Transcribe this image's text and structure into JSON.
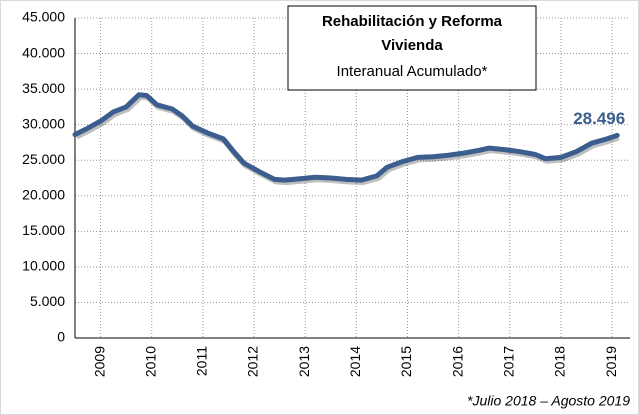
{
  "chart_data": {
    "type": "line",
    "title": [
      "Rehabilitación y Reforma",
      "Vivienda"
    ],
    "subtitle": "Interanual Acumulado*",
    "footnote": "*Julio 2018 – Agosto 2019",
    "x": [
      2009.0,
      2009.25,
      2009.5,
      2009.75,
      2010.0,
      2010.25,
      2010.4,
      2010.6,
      2010.9,
      2011.1,
      2011.3,
      2011.6,
      2011.9,
      2012.1,
      2012.3,
      2012.6,
      2012.9,
      2013.1,
      2013.4,
      2013.7,
      2014.0,
      2014.3,
      2014.6,
      2014.9,
      2015.1,
      2015.4,
      2015.7,
      2016.0,
      2016.3,
      2016.6,
      2016.9,
      2017.1,
      2017.4,
      2017.7,
      2018.0,
      2018.2,
      2018.5,
      2018.8,
      2019.1,
      2019.4,
      2019.6
    ],
    "series": [
      {
        "name": "Rehabilitación y Reforma Vivienda",
        "color": "#3b5e8e",
        "values": [
          28600,
          29500,
          30500,
          31800,
          32500,
          34200,
          34100,
          32800,
          32200,
          31200,
          29800,
          28800,
          28000,
          26200,
          24600,
          23400,
          22300,
          22200,
          22400,
          22600,
          22500,
          22300,
          22200,
          22800,
          24000,
          24800,
          25400,
          25500,
          25700,
          26000,
          26400,
          26700,
          26500,
          26200,
          25800,
          25200,
          25400,
          26200,
          27400,
          28000,
          28496
        ],
        "value_labels": [
          null,
          null,
          null,
          null,
          null,
          null,
          null,
          null,
          null,
          null,
          null,
          null,
          null,
          null,
          null,
          null,
          null,
          null,
          null,
          null,
          null,
          null,
          null,
          null,
          null,
          null,
          null,
          null,
          null,
          null,
          null,
          null,
          null,
          null,
          null,
          null,
          null,
          null,
          null,
          null,
          "28.496"
        ]
      }
    ],
    "xlim": [
      2009.0,
      2019.85
    ],
    "xticks": [
      {
        "value": 2009.5,
        "label": "2009"
      },
      {
        "value": 2010.5,
        "label": "2010"
      },
      {
        "value": 2011.5,
        "label": "2011"
      },
      {
        "value": 2012.5,
        "label": "2012"
      },
      {
        "value": 2013.5,
        "label": "2013"
      },
      {
        "value": 2014.5,
        "label": "2014"
      },
      {
        "value": 2015.5,
        "label": "2015"
      },
      {
        "value": 2016.5,
        "label": "2016"
      },
      {
        "value": 2017.5,
        "label": "2017"
      },
      {
        "value": 2018.5,
        "label": "2018"
      },
      {
        "value": 2019.5,
        "label": "2019"
      }
    ],
    "ylim": [
      0,
      45000
    ],
    "yticks": [
      0,
      {
        "value": 5000,
        "label": "5.000"
      },
      {
        "value": 10000,
        "label": "10.000"
      },
      {
        "value": 15000,
        "label": "15.000"
      },
      {
        "value": 20000,
        "label": "20.000"
      },
      {
        "value": 25000,
        "label": "25.000"
      },
      {
        "value": 30000,
        "label": "30.000"
      },
      {
        "value": 35000,
        "label": "35.000"
      },
      {
        "value": 40000,
        "label": "40.000"
      },
      {
        "value": 45000,
        "label": "45.000"
      }
    ],
    "grid": true
  }
}
